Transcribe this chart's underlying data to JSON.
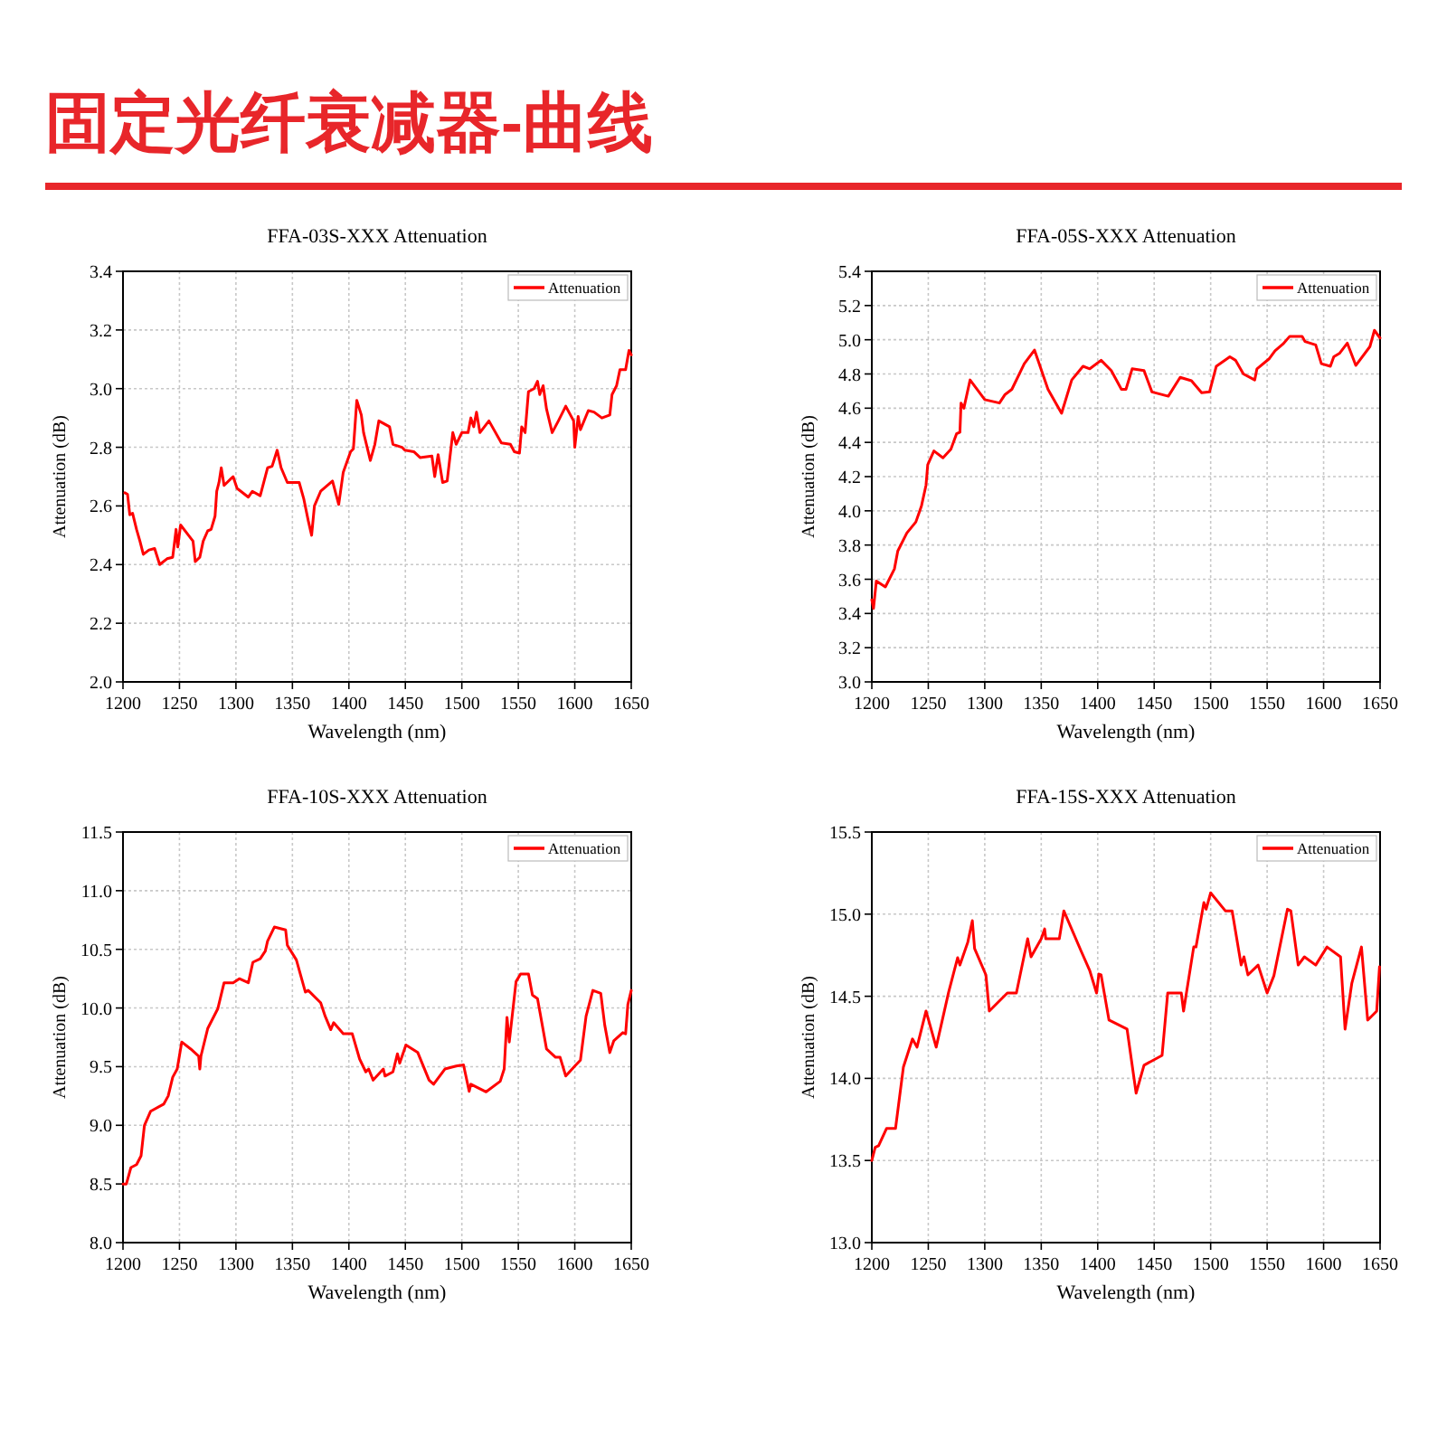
{
  "chart_data": [
    {
      "type": "other",
      "title": "固定光纤衰减器-曲线"
    },
    {
      "type": "line",
      "title": "FFA-03S-XXX Attenuation",
      "xlabel": "Wavelength (nm)",
      "ylabel": "Attenuation (dB)",
      "xlim": [
        1200,
        1650
      ],
      "xticks": [
        1200,
        1250,
        1300,
        1350,
        1400,
        1450,
        1500,
        1550,
        1600,
        1650
      ],
      "ylim": [
        2.0,
        3.4
      ],
      "yticks": [
        {
          "value": 2,
          "label": "2.0"
        },
        2.2,
        2.4,
        2.6,
        2.8,
        {
          "value": 3,
          "label": "3.0"
        },
        3.2,
        3.4
      ],
      "grid": true,
      "legend": "top right",
      "series": [
        {
          "name": "Attenuation",
          "color": "#ff0000",
          "x": [
            1201.6,
            1204,
            1206,
            1208.5,
            1212,
            1215,
            1218,
            1223,
            1228,
            1232.5,
            1239,
            1244,
            1247,
            1248.5,
            1251,
            1258,
            1262,
            1264,
            1268,
            1271,
            1275,
            1278,
            1281.5,
            1283,
            1285,
            1287,
            1289.5,
            1297.5,
            1301,
            1311,
            1314.5,
            1321.5,
            1328,
            1332,
            1336.5,
            1340,
            1345.5,
            1356,
            1360,
            1364,
            1367,
            1369.5,
            1375,
            1385.5,
            1391,
            1395,
            1401.5,
            1404,
            1407,
            1411,
            1413,
            1419,
            1423,
            1426.5,
            1436,
            1439,
            1447,
            1449.5,
            1457.5,
            1463,
            1473.5,
            1476,
            1479,
            1483,
            1487,
            1492,
            1495,
            1500,
            1505.5,
            1508,
            1510.5,
            1513,
            1516,
            1524,
            1535,
            1543,
            1546.5,
            1551,
            1553,
            1556,
            1559,
            1564,
            1567,
            1569,
            1572,
            1575,
            1580,
            1585.5,
            1592,
            1599,
            1600,
            1603,
            1605,
            1612,
            1617,
            1624,
            1631,
            1633,
            1637,
            1640,
            1645,
            1648,
            1650
          ],
          "values": [
            2.645,
            2.64,
            2.57,
            2.575,
            2.52,
            2.48,
            2.435,
            2.45,
            2.455,
            2.4,
            2.42,
            2.425,
            2.52,
            2.46,
            2.535,
            2.5,
            2.48,
            2.41,
            2.425,
            2.48,
            2.515,
            2.52,
            2.565,
            2.65,
            2.68,
            2.73,
            2.67,
            2.7,
            2.66,
            2.63,
            2.65,
            2.635,
            2.73,
            2.735,
            2.79,
            2.73,
            2.68,
            2.68,
            2.625,
            2.55,
            2.5,
            2.6,
            2.65,
            2.685,
            2.605,
            2.715,
            2.785,
            2.795,
            2.96,
            2.91,
            2.85,
            2.755,
            2.81,
            2.89,
            2.87,
            2.81,
            2.8,
            2.79,
            2.785,
            2.765,
            2.77,
            2.7,
            2.775,
            2.68,
            2.685,
            2.85,
            2.81,
            2.85,
            2.85,
            2.9,
            2.87,
            2.92,
            2.85,
            2.89,
            2.815,
            2.81,
            2.785,
            2.78,
            2.87,
            2.85,
            2.99,
            3.0,
            3.025,
            2.98,
            3.01,
            2.93,
            2.85,
            2.89,
            2.94,
            2.89,
            2.8,
            2.905,
            2.86,
            2.925,
            2.92,
            2.9,
            2.91,
            2.98,
            3.01,
            3.065,
            3.065,
            3.13,
            3.115
          ]
        }
      ]
    },
    {
      "type": "line",
      "title": "FFA-05S-XXX Attenuation",
      "xlabel": "Wavelength (nm)",
      "ylabel": "Attenuation (dB)",
      "xlim": [
        1200,
        1650
      ],
      "xticks": [
        1200,
        1250,
        1300,
        1350,
        1400,
        1450,
        1500,
        1550,
        1600,
        1650
      ],
      "ylim": [
        3.0,
        5.4
      ],
      "yticks": [
        {
          "value": 3,
          "label": "3.0"
        },
        3.2,
        3.4,
        3.6,
        3.8,
        {
          "value": 4,
          "label": "4.0"
        },
        4.2,
        4.4,
        4.6,
        4.8,
        {
          "value": 5,
          "label": "5.0"
        },
        5.2,
        5.4
      ],
      "grid": true,
      "legend": "top right",
      "series": [
        {
          "name": "Attenuation",
          "color": "#ff0000",
          "x": [
            1200,
            1201.5,
            1204,
            1212,
            1220,
            1223,
            1231,
            1239,
            1244,
            1248,
            1249.5,
            1255,
            1263,
            1270,
            1275,
            1278,
            1279,
            1281.5,
            1287,
            1300,
            1313,
            1318,
            1324,
            1335,
            1344,
            1356,
            1368,
            1377,
            1387,
            1393,
            1403,
            1412,
            1421,
            1425,
            1430.5,
            1441,
            1448,
            1462.5,
            1473,
            1483,
            1492,
            1499,
            1505,
            1517,
            1522,
            1529,
            1539,
            1541,
            1552,
            1557,
            1564,
            1570,
            1581,
            1583.5,
            1593,
            1598,
            1606,
            1609,
            1614,
            1621,
            1628.5,
            1641,
            1645,
            1650
          ],
          "values": [
            3.48,
            3.43,
            3.59,
            3.555,
            3.66,
            3.765,
            3.87,
            3.935,
            4.03,
            4.15,
            4.27,
            4.35,
            4.31,
            4.36,
            4.45,
            4.46,
            4.63,
            4.6,
            4.765,
            4.65,
            4.63,
            4.68,
            4.71,
            4.86,
            4.94,
            4.71,
            4.57,
            4.765,
            4.845,
            4.83,
            4.88,
            4.82,
            4.71,
            4.71,
            4.83,
            4.82,
            4.695,
            4.67,
            4.78,
            4.76,
            4.69,
            4.695,
            4.845,
            4.9,
            4.88,
            4.8,
            4.765,
            4.83,
            4.89,
            4.935,
            4.975,
            5.02,
            5.02,
            4.99,
            4.97,
            4.86,
            4.845,
            4.9,
            4.92,
            4.98,
            4.85,
            4.96,
            5.055,
            5.01
          ]
        }
      ]
    },
    {
      "type": "line",
      "title": "FFA-10S-XXX Attenuation",
      "xlabel": "Wavelength (nm)",
      "ylabel": "Attenuation (dB)",
      "xlim": [
        1200,
        1650
      ],
      "xticks": [
        1200,
        1250,
        1300,
        1350,
        1400,
        1450,
        1500,
        1550,
        1600,
        1650
      ],
      "ylim": [
        8.0,
        11.5
      ],
      "yticks": [
        {
          "value": 8,
          "label": "8.0"
        },
        8.5,
        {
          "value": 9,
          "label": "9.0"
        },
        9.5,
        {
          "value": 10,
          "label": "10.0"
        },
        10.5,
        {
          "value": 11,
          "label": "11.0"
        },
        11.5
      ],
      "grid": true,
      "legend": "top right",
      "series": [
        {
          "name": "Attenuation",
          "color": "#ff0000",
          "x": [
            1200,
            1203,
            1207,
            1212,
            1216,
            1219,
            1224.5,
            1236,
            1240,
            1244,
            1248,
            1252,
            1260,
            1267,
            1268,
            1269,
            1275,
            1284,
            1289.5,
            1297.5,
            1303,
            1311,
            1315,
            1321.5,
            1326,
            1328,
            1334,
            1344,
            1345.5,
            1353.5,
            1361.5,
            1364,
            1375,
            1379,
            1384,
            1386.5,
            1395,
            1403,
            1409.5,
            1415,
            1417.5,
            1421.5,
            1430.5,
            1432,
            1439,
            1443,
            1445,
            1450.5,
            1461,
            1471,
            1475,
            1485,
            1495,
            1501.5,
            1506.5,
            1508,
            1521.5,
            1534,
            1537.5,
            1540,
            1542,
            1548,
            1552,
            1559,
            1562.5,
            1567,
            1571,
            1575,
            1583,
            1587,
            1592,
            1601,
            1605,
            1610,
            1616,
            1623,
            1626.5,
            1631,
            1634.5,
            1642.5,
            1645,
            1647,
            1650
          ],
          "values": [
            8.5,
            8.5,
            8.64,
            8.665,
            8.74,
            9.0,
            9.12,
            9.18,
            9.25,
            9.41,
            9.48,
            9.71,
            9.65,
            9.59,
            9.48,
            9.59,
            9.825,
            9.995,
            10.215,
            10.215,
            10.25,
            10.215,
            10.39,
            10.42,
            10.485,
            10.57,
            10.69,
            10.665,
            10.535,
            10.41,
            10.135,
            10.15,
            10.045,
            9.93,
            9.815,
            9.875,
            9.78,
            9.78,
            9.565,
            9.455,
            9.48,
            9.385,
            9.48,
            9.42,
            9.455,
            9.61,
            9.53,
            9.685,
            9.62,
            9.385,
            9.35,
            9.48,
            9.505,
            9.515,
            9.29,
            9.35,
            9.285,
            9.375,
            9.48,
            9.92,
            9.71,
            10.225,
            10.29,
            10.29,
            10.11,
            10.08,
            9.865,
            9.65,
            9.58,
            9.58,
            9.42,
            9.515,
            9.555,
            9.93,
            10.15,
            10.125,
            9.855,
            9.62,
            9.72,
            9.79,
            9.78,
            10.03,
            10.15
          ]
        }
      ]
    },
    {
      "type": "line",
      "title": "FFA-15S-XXX Attenuation",
      "xlabel": "Wavelength (nm)",
      "ylabel": "Attenuation (dB)",
      "xlim": [
        1200,
        1650
      ],
      "xticks": [
        1200,
        1250,
        1300,
        1350,
        1400,
        1450,
        1500,
        1550,
        1600,
        1650
      ],
      "ylim": [
        13.0,
        15.5
      ],
      "yticks": [
        {
          "value": 13,
          "label": "13.0"
        },
        13.5,
        {
          "value": 14,
          "label": "14.0"
        },
        14.5,
        {
          "value": 15,
          "label": "15.0"
        },
        15.5
      ],
      "grid": true,
      "legend": "top right",
      "series": [
        {
          "name": "Attenuation",
          "color": "#ff0000",
          "x": [
            1200,
            1203,
            1206,
            1213,
            1221,
            1228,
            1236,
            1240,
            1248,
            1257,
            1268,
            1276,
            1278,
            1285,
            1289,
            1291,
            1301,
            1304,
            1320,
            1328,
            1338,
            1341,
            1350,
            1353,
            1354,
            1366,
            1370,
            1385,
            1393,
            1399,
            1401,
            1403,
            1410,
            1426,
            1434,
            1441,
            1457,
            1462,
            1474,
            1476,
            1485,
            1487,
            1494,
            1496,
            1500,
            1513,
            1519,
            1527,
            1529.5,
            1533,
            1542,
            1550,
            1556,
            1568,
            1571,
            1577.5,
            1583,
            1593,
            1603,
            1615,
            1619,
            1625,
            1633.5,
            1639,
            1647,
            1649.5
          ],
          "values": [
            13.5,
            13.58,
            13.59,
            13.695,
            13.695,
            14.07,
            14.24,
            14.19,
            14.41,
            14.19,
            14.525,
            14.735,
            14.69,
            14.83,
            14.96,
            14.79,
            14.63,
            14.41,
            14.52,
            14.52,
            14.85,
            14.74,
            14.85,
            14.91,
            14.85,
            14.85,
            15.02,
            14.78,
            14.655,
            14.52,
            14.635,
            14.63,
            14.355,
            14.3,
            13.91,
            14.08,
            14.14,
            14.52,
            14.52,
            14.41,
            14.8,
            14.8,
            15.07,
            15.03,
            15.13,
            15.02,
            15.02,
            14.69,
            14.74,
            14.63,
            14.69,
            14.52,
            14.625,
            15.03,
            15.02,
            14.69,
            14.74,
            14.69,
            14.8,
            14.74,
            14.3,
            14.58,
            14.8,
            14.355,
            14.41,
            14.68
          ]
        }
      ]
    }
  ]
}
